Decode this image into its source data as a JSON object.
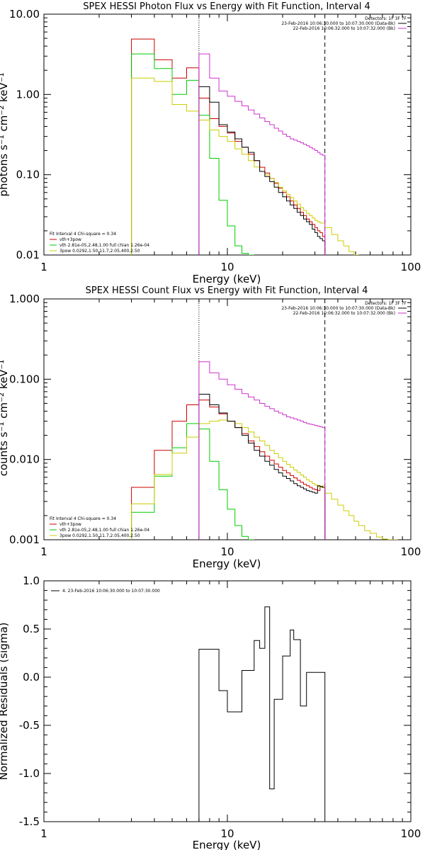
{
  "chart_data": [
    {
      "type": "line",
      "title": "SPEX HESSI Photon Flux vs Energy with Fit Function, Interval 4",
      "xlabel": "Energy (keV)",
      "ylabel": "photons s⁻¹ cm⁻² keV⁻¹",
      "xscale": "log",
      "yscale": "log",
      "xlim": [
        1,
        100
      ],
      "ylim": [
        0.01,
        10
      ],
      "x_ticks": [
        1,
        10,
        100
      ],
      "x_tick_labels": [
        "1",
        "10",
        "100"
      ],
      "y_ticks": [
        0.01,
        0.1,
        1,
        10
      ],
      "y_tick_labels": [
        "0.01",
        "0.10",
        "1.00",
        "10.00"
      ],
      "vlines": [
        {
          "x": 7.0,
          "style": "dotted",
          "color": "#000000"
        },
        {
          "x": 34.0,
          "style": "dashed",
          "color": "#000000"
        }
      ],
      "legend_top_right": {
        "header": "Detectors: 1F 3F 7F",
        "entries": [
          {
            "text": "23-Feb-2016 10:06:30.000 to 10:07:30.000 (Data-Bk)",
            "color": "#000000"
          },
          {
            "text": "22-Feb-2016 10:06:32.000 to 10:07:32.000 (Bk)",
            "color": "#cc33cc"
          }
        ]
      },
      "legend_bottom_left": {
        "header": "Fit Interval 4   Chi-square = 0.34",
        "entries": [
          {
            "text": "vth+3pow",
            "color": "#cc0000"
          },
          {
            "text": "vth 2.81e-05,2.48,1.00   full chian 1.26e-04",
            "color": "#00cc00"
          },
          {
            "text": "3pow 0.0292,1.50,11.7,2.05,400,2.50",
            "color": "#cccc00"
          }
        ]
      },
      "series": [
        {
          "color": "#cc0000",
          "edges": [
            3,
            4,
            5,
            6,
            7,
            8,
            9,
            10,
            11,
            12,
            13,
            14,
            15,
            16,
            17,
            18,
            19,
            20,
            21,
            22,
            23,
            24,
            25,
            26,
            27,
            28,
            29,
            30,
            31,
            32,
            33,
            34
          ],
          "values": [
            4.9,
            2.7,
            1.6,
            2.15,
            0.9,
            0.5,
            0.4,
            0.33,
            0.26,
            0.22,
            0.18,
            0.15,
            0.124,
            0.105,
            0.09,
            0.078,
            0.068,
            0.06,
            0.053,
            0.047,
            0.042,
            0.038,
            0.034,
            0.031,
            0.028,
            0.026,
            0.024,
            0.022,
            0.02,
            0.019,
            0.017
          ]
        },
        {
          "color": "#00cc00",
          "edges": [
            3,
            4,
            5,
            6,
            7,
            8,
            9,
            10,
            11,
            12,
            13,
            14
          ],
          "values": [
            3.2,
            2.1,
            1.0,
            1.5,
            0.55,
            0.16,
            0.048,
            0.023,
            0.013,
            0.0105,
            0.01
          ]
        },
        {
          "color": "#cccc00",
          "edges": [
            3,
            4,
            5,
            6,
            7,
            8,
            9,
            10,
            11,
            12,
            13,
            14,
            15,
            16,
            17,
            18,
            19,
            20,
            21,
            22,
            23,
            24,
            25,
            26,
            27,
            28,
            29,
            30,
            31,
            32,
            33,
            34,
            37,
            40,
            43,
            46,
            49,
            52
          ],
          "values": [
            1.6,
            1.45,
            0.75,
            0.62,
            0.48,
            0.36,
            0.3,
            0.26,
            0.21,
            0.18,
            0.15,
            0.125,
            0.11,
            0.1,
            0.09,
            0.08,
            0.07,
            0.063,
            0.057,
            0.052,
            0.047,
            0.043,
            0.039,
            0.036,
            0.033,
            0.031,
            0.029,
            0.027,
            0.026,
            0.025,
            0.025,
            0.022,
            0.018,
            0.015,
            0.013,
            0.011,
            0.01
          ]
        },
        {
          "color": "#000000",
          "edges": [
            7,
            8,
            9,
            10,
            11,
            12,
            13,
            14,
            15,
            16,
            17,
            18,
            19,
            20,
            21,
            22,
            23,
            24,
            25,
            26,
            27,
            28,
            29,
            30,
            31,
            32,
            33,
            34
          ],
          "values": [
            1.25,
            0.8,
            0.42,
            0.34,
            0.28,
            0.22,
            0.19,
            0.15,
            0.11,
            0.095,
            0.082,
            0.07,
            0.06,
            0.053,
            0.047,
            0.042,
            0.038,
            0.034,
            0.031,
            0.028,
            0.026,
            0.024,
            0.021,
            0.019,
            0.017,
            0.016,
            0.015
          ]
        },
        {
          "color": "#cc33cc",
          "edges": [
            7,
            8,
            9,
            10,
            11,
            12,
            13,
            14,
            15,
            16,
            17,
            18,
            19,
            20,
            21,
            22,
            23,
            24,
            25,
            26,
            27,
            28,
            29,
            30,
            31,
            32,
            33,
            34
          ],
          "values": [
            3.2,
            1.6,
            1.1,
            0.95,
            0.82,
            0.72,
            0.64,
            0.57,
            0.51,
            0.46,
            0.42,
            0.38,
            0.35,
            0.32,
            0.3,
            0.28,
            0.27,
            0.26,
            0.25,
            0.24,
            0.23,
            0.22,
            0.21,
            0.2,
            0.19,
            0.18,
            0.175
          ]
        }
      ]
    },
    {
      "type": "line",
      "title": "SPEX HESSI Count Flux vs Energy with Fit Function, Interval 4",
      "xlabel": "Energy (keV)",
      "ylabel": "counts s⁻¹ cm⁻² keV⁻¹",
      "xscale": "log",
      "yscale": "log",
      "xlim": [
        1,
        100
      ],
      "ylim": [
        0.001,
        1
      ],
      "x_ticks": [
        1,
        10,
        100
      ],
      "x_tick_labels": [
        "1",
        "10",
        "100"
      ],
      "y_ticks": [
        0.001,
        0.01,
        0.1,
        1
      ],
      "y_tick_labels": [
        "0.001",
        "0.010",
        "0.100",
        "1.000"
      ],
      "vlines": [
        {
          "x": 7.0,
          "style": "dotted",
          "color": "#000000"
        },
        {
          "x": 34.0,
          "style": "dashed",
          "color": "#000000"
        }
      ],
      "legend_top_right": {
        "header": "Detectors: 1F 3F 7F",
        "entries": [
          {
            "text": "23-Feb-2016 10:06:30.000 to 10:07:30.000 (Data-Bk)",
            "color": "#000000"
          },
          {
            "text": "22-Feb-2016 10:06:32.000 to 10:07:32.000 (Bk)",
            "color": "#cc33cc"
          }
        ]
      },
      "legend_bottom_left": {
        "header": "Fit Interval 4   Chi-square = 0.34",
        "entries": [
          {
            "text": "vth+3pow",
            "color": "#cc0000"
          },
          {
            "text": "vth 2.81e-05,2.48,1.00   full chian 1.26e-04",
            "color": "#00cc00"
          },
          {
            "text": "3pow 0.0292,1.50,11.7,2.05,400,2.50",
            "color": "#cccc00"
          }
        ]
      },
      "series": [
        {
          "color": "#cc0000",
          "edges": [
            3,
            4,
            5,
            6,
            7,
            8,
            9,
            10,
            11,
            12,
            13,
            14,
            15,
            16,
            17,
            18,
            19,
            20,
            21,
            22,
            23,
            24,
            25,
            26,
            27,
            28,
            29,
            30,
            31,
            32,
            33,
            34
          ],
          "values": [
            0.0045,
            0.013,
            0.03,
            0.048,
            0.055,
            0.045,
            0.037,
            0.03,
            0.025,
            0.021,
            0.017,
            0.0145,
            0.0125,
            0.011,
            0.0098,
            0.0088,
            0.008,
            0.0073,
            0.0068,
            0.0063,
            0.0059,
            0.0055,
            0.0052,
            0.0049,
            0.0047,
            0.0045,
            0.0043,
            0.0042,
            0.0041,
            0.0046,
            0.0045
          ]
        },
        {
          "color": "#00cc00",
          "edges": [
            3,
            4,
            5,
            6,
            7,
            8,
            9,
            10,
            11,
            12,
            13,
            14
          ],
          "values": [
            0.0022,
            0.0062,
            0.014,
            0.028,
            0.024,
            0.0095,
            0.0042,
            0.0024,
            0.0015,
            0.0011,
            0.001
          ]
        },
        {
          "color": "#cccc00",
          "edges": [
            3,
            4,
            5,
            6,
            7,
            8,
            9,
            10,
            11,
            12,
            13,
            14,
            15,
            16,
            17,
            18,
            19,
            20,
            21,
            22,
            23,
            24,
            25,
            26,
            27,
            28,
            29,
            30,
            31,
            32,
            33,
            34,
            37,
            40,
            43,
            46,
            49,
            52,
            56,
            60,
            65,
            70,
            75,
            80,
            85
          ],
          "values": [
            0.0028,
            0.0065,
            0.012,
            0.019,
            0.028,
            0.03,
            0.031,
            0.03,
            0.028,
            0.025,
            0.022,
            0.019,
            0.017,
            0.015,
            0.013,
            0.0118,
            0.0105,
            0.0095,
            0.0087,
            0.008,
            0.0074,
            0.0069,
            0.0064,
            0.006,
            0.0056,
            0.0053,
            0.005,
            0.0048,
            0.0046,
            0.0045,
            0.0047,
            0.0038,
            0.0032,
            0.0027,
            0.0023,
            0.002,
            0.0017,
            0.0015,
            0.0013,
            0.0012,
            0.00108,
            0.00102,
            0.001,
            0.001
          ]
        },
        {
          "color": "#000000",
          "edges": [
            7,
            8,
            9,
            10,
            11,
            12,
            13,
            14,
            15,
            16,
            17,
            18,
            19,
            20,
            21,
            22,
            23,
            24,
            25,
            26,
            27,
            28,
            29,
            30,
            31,
            32,
            33,
            34
          ],
          "values": [
            0.065,
            0.048,
            0.038,
            0.03,
            0.025,
            0.02,
            0.016,
            0.013,
            0.011,
            0.0095,
            0.0085,
            0.0075,
            0.0068,
            0.0062,
            0.0058,
            0.0054,
            0.005,
            0.0047,
            0.0045,
            0.0043,
            0.0041,
            0.004,
            0.0039,
            0.0038,
            0.0047,
            0.0046,
            0.0045
          ]
        },
        {
          "color": "#cc33cc",
          "edges": [
            7,
            8,
            9,
            10,
            11,
            12,
            13,
            14,
            15,
            16,
            17,
            18,
            19,
            20,
            21,
            22,
            23,
            24,
            25,
            26,
            27,
            28,
            29,
            30,
            31,
            32,
            33,
            34
          ],
          "values": [
            0.165,
            0.12,
            0.1,
            0.085,
            0.075,
            0.066,
            0.06,
            0.055,
            0.05,
            0.046,
            0.043,
            0.04,
            0.038,
            0.036,
            0.034,
            0.033,
            0.032,
            0.031,
            0.03,
            0.029,
            0.028,
            0.0275,
            0.027,
            0.0265,
            0.026,
            0.0255,
            0.025
          ]
        }
      ]
    },
    {
      "type": "line",
      "title": "",
      "xlabel": "Energy (keV)",
      "ylabel": "Normalized Residuals (sigma)",
      "xscale": "log",
      "yscale": "linear",
      "xlim": [
        1,
        100
      ],
      "ylim": [
        -1.5,
        1.0
      ],
      "x_ticks": [
        1,
        10,
        100
      ],
      "x_tick_labels": [
        "1",
        "10",
        "100"
      ],
      "y_ticks": [
        -1.5,
        -1.0,
        -0.5,
        0.0,
        0.5,
        1.0
      ],
      "y_tick_labels": [
        "-1.5",
        "-1.0",
        "-0.5",
        "0.0",
        "0.5",
        "1.0"
      ],
      "legend_top_left": {
        "entries": [
          {
            "text": "4.  23-Feb-2016 10:06:30.000 to 10:07:30.000",
            "color": "#000000"
          }
        ]
      },
      "series": [
        {
          "color": "#000000",
          "edges": [
            7,
            8,
            9,
            10,
            11,
            12,
            13,
            14,
            15,
            16,
            17,
            18,
            19,
            20,
            21,
            22,
            23,
            24,
            25,
            26,
            27,
            28,
            29,
            30,
            31,
            32,
            33,
            34
          ],
          "values": [
            0.29,
            0.29,
            -0.14,
            -0.36,
            -0.36,
            0.07,
            0.07,
            0.38,
            0.3,
            0.73,
            -1.16,
            -0.23,
            -0.23,
            0.22,
            0.22,
            0.49,
            0.39,
            0.39,
            -0.3,
            -0.3,
            0.05,
            0.05,
            0.05,
            0.05,
            0.05,
            0.05,
            0.05
          ]
        }
      ]
    }
  ]
}
